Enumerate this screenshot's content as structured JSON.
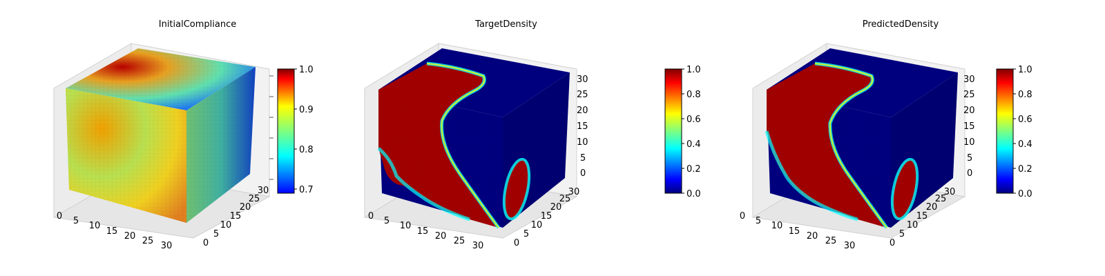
{
  "chart_data": [
    {
      "type": "voxel-3d",
      "title": "InitialCompliance",
      "colormap": "jet",
      "colorbar": {
        "min": 0.69,
        "max": 1.0,
        "ticks": [
          "0.7",
          "0.8",
          "0.9",
          "1.0"
        ]
      },
      "x_ticks": [
        "0",
        "5",
        "10",
        "15",
        "20",
        "25",
        "30"
      ],
      "y_ticks": [
        "0",
        "5",
        "10",
        "15",
        "20",
        "25",
        "30"
      ],
      "z_ticks": [],
      "grid": true
    },
    {
      "type": "voxel-3d",
      "title": "TargetDensity",
      "colormap": "jet",
      "colorbar": {
        "min": 0.0,
        "max": 1.0,
        "ticks": [
          "0.0",
          "0.2",
          "0.4",
          "0.6",
          "0.8",
          "1.0"
        ]
      },
      "x_ticks": [
        "0",
        "5",
        "10",
        "15",
        "20",
        "25",
        "30"
      ],
      "y_ticks": [
        "0",
        "5",
        "10",
        "15",
        "20",
        "25",
        "30"
      ],
      "z_ticks": [
        "0",
        "5",
        "10",
        "15",
        "20",
        "25",
        "30"
      ],
      "grid": true
    },
    {
      "type": "voxel-3d",
      "title": "PredictedDensity",
      "colormap": "jet",
      "colorbar": {
        "min": 0.0,
        "max": 1.0,
        "ticks": [
          "0.0",
          "0.2",
          "0.4",
          "0.6",
          "0.8",
          "1.0"
        ]
      },
      "x_ticks": [
        "0",
        "5",
        "10",
        "15",
        "20",
        "25",
        "30"
      ],
      "y_ticks": [
        "0",
        "5",
        "10",
        "15",
        "20",
        "25",
        "30"
      ],
      "z_ticks": [
        "0",
        "5",
        "10",
        "15",
        "20",
        "25",
        "30"
      ],
      "grid": true
    }
  ],
  "colors": {
    "jet_stops": [
      "#00007f",
      "#0000ff",
      "#007fff",
      "#00ffff",
      "#7fff7f",
      "#ffff00",
      "#ff7f00",
      "#ff0000",
      "#7f0000"
    ],
    "pane": "#ececec",
    "grid": "#cccccc"
  }
}
